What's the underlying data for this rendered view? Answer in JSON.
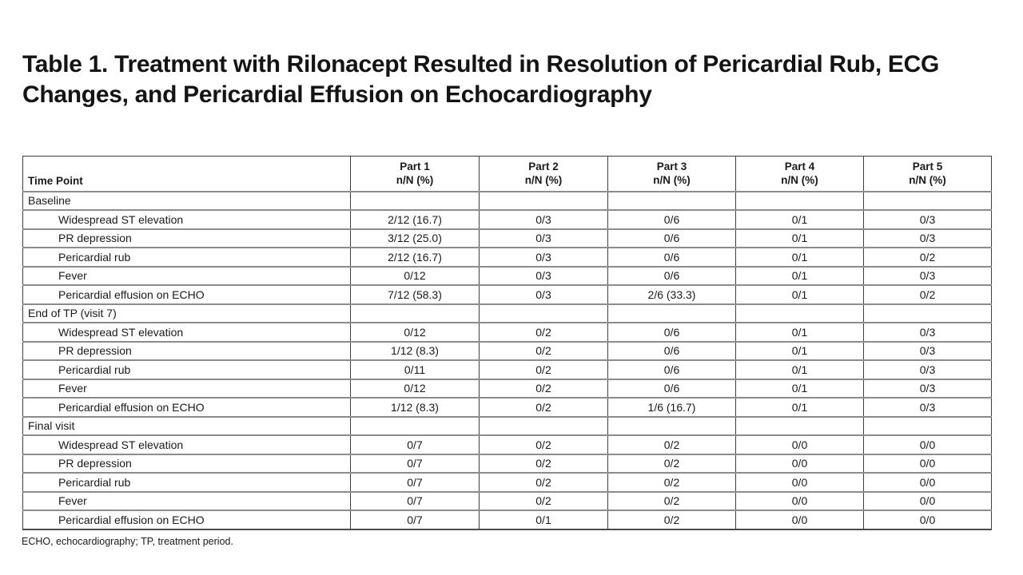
{
  "slide": {
    "title": "Table 1. Treatment with Rilonacept Resulted in Resolution of Pericardial Rub, ECG Changes, and Pericardial Effusion on Echocardiography",
    "footnote": "ECHO, echocardiography; TP, treatment period."
  },
  "table": {
    "row_header_label": "Time Point",
    "columns": [
      {
        "label": "Part 1",
        "sublabel": "n/N (%)"
      },
      {
        "label": "Part 2",
        "sublabel": "n/N (%)"
      },
      {
        "label": "Part 3",
        "sublabel": "n/N (%)"
      },
      {
        "label": "Part 4",
        "sublabel": "n/N (%)"
      },
      {
        "label": "Part 5",
        "sublabel": "n/N (%)"
      }
    ],
    "sections": [
      {
        "label": "Baseline",
        "rows": [
          {
            "label": "Widespread ST elevation",
            "values": [
              "2/12 (16.7)",
              "0/3",
              "0/6",
              "0/1",
              "0/3"
            ]
          },
          {
            "label": "PR depression",
            "values": [
              "3/12 (25.0)",
              "0/3",
              "0/6",
              "0/1",
              "0/3"
            ]
          },
          {
            "label": "Pericardial rub",
            "values": [
              "2/12 (16.7)",
              "0/3",
              "0/6",
              "0/1",
              "0/2"
            ]
          },
          {
            "label": "Fever",
            "values": [
              "0/12",
              "0/3",
              "0/6",
              "0/1",
              "0/3"
            ]
          },
          {
            "label": "Pericardial effusion on ECHO",
            "values": [
              "7/12 (58.3)",
              "0/3",
              "2/6 (33.3)",
              "0/1",
              "0/2"
            ]
          }
        ]
      },
      {
        "label": "End of TP (visit 7)",
        "rows": [
          {
            "label": "Widespread ST elevation",
            "values": [
              "0/12",
              "0/2",
              "0/6",
              "0/1",
              "0/3"
            ]
          },
          {
            "label": "PR depression",
            "values": [
              "1/12 (8.3)",
              "0/2",
              "0/6",
              "0/1",
              "0/3"
            ]
          },
          {
            "label": "Pericardial rub",
            "values": [
              "0/11",
              "0/2",
              "0/6",
              "0/1",
              "0/3"
            ]
          },
          {
            "label": "Fever",
            "values": [
              "0/12",
              "0/2",
              "0/6",
              "0/1",
              "0/3"
            ]
          },
          {
            "label": "Pericardial effusion on ECHO",
            "values": [
              "1/12 (8.3)",
              "0/2",
              "1/6 (16.7)",
              "0/1",
              "0/3"
            ]
          }
        ]
      },
      {
        "label": "Final visit",
        "rows": [
          {
            "label": "Widespread ST elevation",
            "values": [
              "0/7",
              "0/2",
              "0/2",
              "0/0",
              "0/0"
            ]
          },
          {
            "label": "PR depression",
            "values": [
              "0/7",
              "0/2",
              "0/2",
              "0/0",
              "0/0"
            ]
          },
          {
            "label": "Pericardial rub",
            "values": [
              "0/7",
              "0/2",
              "0/2",
              "0/0",
              "0/0"
            ]
          },
          {
            "label": "Fever",
            "values": [
              "0/7",
              "0/2",
              "0/2",
              "0/0",
              "0/0"
            ]
          },
          {
            "label": "Pericardial effusion on ECHO",
            "values": [
              "0/7",
              "0/1",
              "0/2",
              "0/0",
              "0/0"
            ]
          }
        ]
      }
    ]
  },
  "colors": {
    "background": "#ffffff",
    "text": "#1a1a1a",
    "border_dark": "#3f3f3f",
    "border_gray": "#8c8c8c"
  }
}
